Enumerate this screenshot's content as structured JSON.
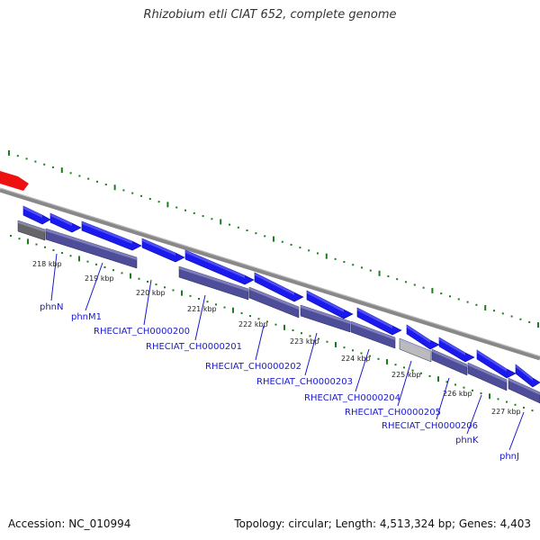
{
  "title": "Rhizobium etli CIAT 652, complete genome",
  "footer": {
    "accession": "Accession: NC_010994",
    "topology": "Topology: circular; Length: 4,513,324 bp; Genes: 4,403"
  },
  "colors": {
    "forward_gene": "#1a1aee",
    "reverse_red": "#ee1111",
    "protein_band": "#4d4d99",
    "backbone": "#888888",
    "ticks": "#1d7d1d",
    "label": "#1a1acc"
  },
  "kbp_ticks": [
    {
      "kb": 218,
      "label": "218 kbp"
    },
    {
      "kb": 219,
      "label": "219 kbp"
    },
    {
      "kb": 220,
      "label": "220 kbp"
    },
    {
      "kb": 221,
      "label": "221 kbp"
    },
    {
      "kb": 222,
      "label": "222 kbp"
    },
    {
      "kb": 223,
      "label": "223 kbp"
    },
    {
      "kb": 224,
      "label": "224 kbp"
    },
    {
      "kb": 225,
      "label": "225 kbp"
    },
    {
      "kb": 226,
      "label": "226 kbp"
    },
    {
      "kb": 227,
      "label": "227 kbp"
    }
  ],
  "genes": [
    {
      "label": "phnN"
    },
    {
      "label": "phnM1"
    },
    {
      "label": "RHECIAT_CH0000200"
    },
    {
      "label": "RHECIAT_CH0000201"
    },
    {
      "label": "RHECIAT_CH0000202"
    },
    {
      "label": "RHECIAT_CH0000203"
    },
    {
      "label": "RHECIAT_CH0000204"
    },
    {
      "label": "RHECIAT_CH0000205"
    },
    {
      "label": "RHECIAT_CH0000206"
    },
    {
      "label": "phnK"
    },
    {
      "label": "phnJ"
    }
  ]
}
